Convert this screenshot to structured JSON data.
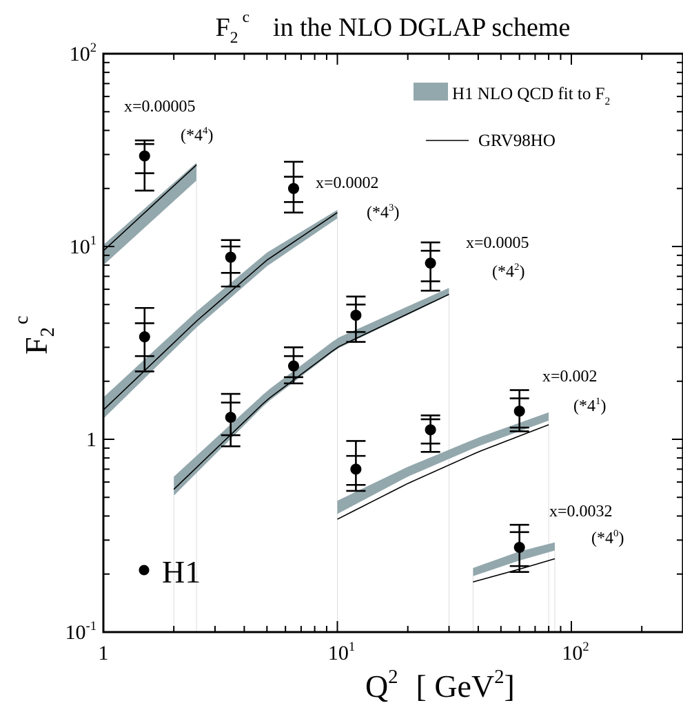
{
  "chart_data": {
    "type": "line",
    "title": {
      "main": "F",
      "sub": "2",
      "sup": "c",
      "rest": "in the NLO DGLAP scheme"
    },
    "xlabel": {
      "main": "Q",
      "sup": "2",
      "unit_open": "[ GeV",
      "unit_sup": "2",
      "unit_close": "]"
    },
    "ylabel": {
      "main": "F",
      "sub": "2",
      "sup": "c"
    },
    "xscale": "log",
    "yscale": "log",
    "xlim": [
      1,
      300
    ],
    "ylim": [
      0.1,
      100
    ],
    "x_ticks": [
      {
        "value": 1,
        "base": "1",
        "exp": ""
      },
      {
        "value": 10,
        "base": "10",
        "exp": "1"
      },
      {
        "value": 100,
        "base": "10",
        "exp": "2"
      }
    ],
    "y_ticks": [
      {
        "value": 0.1,
        "base": "10",
        "exp": "-1"
      },
      {
        "value": 1,
        "base": "1",
        "exp": ""
      },
      {
        "value": 10,
        "base": "10",
        "exp": "1"
      },
      {
        "value": 100,
        "base": "10",
        "exp": "2"
      }
    ],
    "legend": {
      "placement": "top-right",
      "band_label": "H1 NLO QCD  fit to F",
      "band_label_sub": "2",
      "line_label": "GRV98HO",
      "marker_label": "H1"
    },
    "colors": {
      "band": "#93a8ad",
      "line": "#000000",
      "marker": "#000000"
    },
    "groups": [
      {
        "x_label": "x=0.00005",
        "scale_base": "(*4",
        "scale_exp": "4",
        "scale_close": ")",
        "band": {
          "x": [
            1,
            2.5
          ],
          "lower": [
            8.0,
            22.0
          ],
          "upper": [
            10.2,
            27.2
          ]
        },
        "grv": {
          "x": [
            1,
            2.5
          ],
          "y": [
            9.5,
            26.5
          ]
        },
        "points": [
          {
            "x": 1.5,
            "y": 29.5,
            "err_inner": [
              24.0,
              34.0
            ],
            "err_outer": [
              19.5,
              35.5
            ]
          }
        ]
      },
      {
        "x_label": "x=0.0002",
        "scale_base": "(*4",
        "scale_exp": "3",
        "scale_close": ")",
        "band": {
          "x": [
            1,
            2.5,
            5,
            10
          ],
          "lower": [
            1.28,
            3.8,
            7.9,
            14.0
          ],
          "upper": [
            1.65,
            4.6,
            9.3,
            15.5
          ]
        },
        "grv": {
          "x": [
            1,
            2.5,
            5,
            10
          ],
          "y": [
            1.42,
            4.1,
            8.5,
            15.0
          ]
        },
        "points": [
          {
            "x": 1.5,
            "y": 3.4,
            "err_inner": [
              2.7,
              4.0
            ],
            "err_outer": [
              2.25,
              4.8
            ]
          },
          {
            "x": 3.5,
            "y": 8.8,
            "err_inner": [
              7.3,
              10.0
            ],
            "err_outer": [
              6.2,
              10.8
            ]
          },
          {
            "x": 6.5,
            "y": 20.0,
            "err_inner": [
              17.0,
              23.0
            ],
            "err_outer": [
              15.0,
              27.5
            ]
          }
        ]
      },
      {
        "x_label": "x=0.0005",
        "scale_base": "(*4",
        "scale_exp": "2",
        "scale_close": ")",
        "band": {
          "x": [
            2,
            5,
            10,
            30
          ],
          "lower": [
            0.51,
            1.55,
            2.95,
            5.6
          ],
          "upper": [
            0.64,
            1.78,
            3.35,
            6.1
          ]
        },
        "grv": {
          "x": [
            2,
            5,
            10,
            30
          ],
          "y": [
            0.55,
            1.6,
            3.0,
            5.65
          ]
        },
        "points": [
          {
            "x": 3.5,
            "y": 1.3,
            "err_inner": [
              1.05,
              1.55
            ],
            "err_outer": [
              0.92,
              1.72
            ]
          },
          {
            "x": 6.5,
            "y": 2.4,
            "err_inner": [
              2.1,
              2.7
            ],
            "err_outer": [
              1.95,
              3.0
            ]
          },
          {
            "x": 12,
            "y": 4.4,
            "err_inner": [
              3.6,
              5.0
            ],
            "err_outer": [
              3.2,
              5.5
            ]
          },
          {
            "x": 25,
            "y": 8.2,
            "err_inner": [
              6.6,
              9.5
            ],
            "err_outer": [
              5.9,
              10.5
            ]
          }
        ]
      },
      {
        "x_label": "x=0.002",
        "scale_base": "(*4",
        "scale_exp": "1",
        "scale_close": ")",
        "band": {
          "x": [
            10,
            20,
            40,
            80
          ],
          "lower": [
            0.41,
            0.64,
            0.92,
            1.25
          ],
          "upper": [
            0.48,
            0.72,
            1.02,
            1.38
          ]
        },
        "grv": {
          "x": [
            10,
            20,
            40,
            80
          ],
          "y": [
            0.385,
            0.59,
            0.86,
            1.19
          ]
        },
        "points": [
          {
            "x": 12,
            "y": 0.7,
            "err_inner": [
              0.58,
              0.82
            ],
            "err_outer": [
              0.54,
              0.98
            ]
          },
          {
            "x": 25,
            "y": 1.12,
            "err_inner": [
              0.95,
              1.27
            ],
            "err_outer": [
              0.86,
              1.33
            ]
          },
          {
            "x": 60,
            "y": 1.4,
            "err_inner": [
              1.15,
              1.63
            ],
            "err_outer": [
              1.1,
              1.8
            ]
          }
        ]
      },
      {
        "x_label": "x=0.0032",
        "scale_base": "(*4",
        "scale_exp": "0",
        "scale_close": ")",
        "band": {
          "x": [
            38,
            60,
            85
          ],
          "lower": [
            0.195,
            0.235,
            0.265
          ],
          "upper": [
            0.215,
            0.262,
            0.292
          ]
        },
        "grv": {
          "x": [
            38,
            60,
            85
          ],
          "y": [
            0.182,
            0.212,
            0.24
          ]
        },
        "points": [
          {
            "x": 60,
            "y": 0.275,
            "err_inner": [
              0.22,
              0.33
            ],
            "err_outer": [
              0.205,
              0.36
            ]
          }
        ]
      }
    ]
  }
}
